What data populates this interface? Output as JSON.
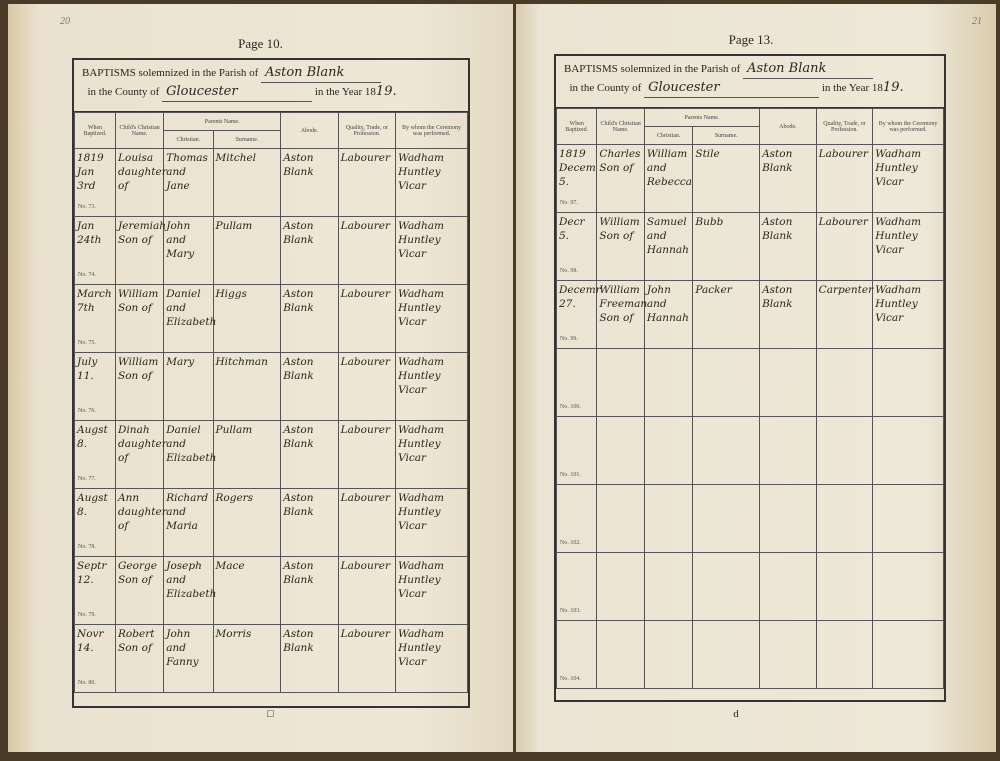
{
  "left": {
    "corner": "20",
    "page_label": "Page 10.",
    "heading": {
      "prefix": "BAPTISMS solemnized in the Parish of",
      "parish": "Aston Blank",
      "county_prefix": "in the County of",
      "county": "Gloucester",
      "year_prefix": "in the Year 18",
      "year": "19."
    },
    "columns": {
      "when": "When Baptized.",
      "child": "Child's Christian Name.",
      "parents": "Parents Name.",
      "christian": "Christian.",
      "surname": "Surname.",
      "abode": "Abode.",
      "quality": "Quality, Trade, or Profession.",
      "by": "By whom the Ceremony was performed."
    },
    "entries": [
      {
        "date": "1819 Jan 3rd",
        "child": "Louisa daughter of",
        "parents": "Thomas and Jane",
        "surname": "Mitchel",
        "abode": "Aston Blank",
        "quality": "Labourer",
        "by": "Wadham Huntley Vicar",
        "no": "No. 73."
      },
      {
        "date": "Jan 24th",
        "child": "Jeremiah Son of",
        "parents": "John and Mary",
        "surname": "Pullam",
        "abode": "Aston Blank",
        "quality": "Labourer",
        "by": "Wadham Huntley Vicar",
        "no": "No. 74."
      },
      {
        "date": "March 7th",
        "child": "William Son of",
        "parents": "Daniel and Elizabeth",
        "surname": "Higgs",
        "abode": "Aston Blank",
        "quality": "Labourer",
        "by": "Wadham Huntley Vicar",
        "no": "No. 75."
      },
      {
        "date": "July 11.",
        "child": "William Son of",
        "parents": "Mary",
        "surname": "Hitchman",
        "abode": "Aston Blank",
        "quality": "Labourer",
        "by": "Wadham Huntley Vicar",
        "no": "No. 76."
      },
      {
        "date": "Augst 8.",
        "child": "Dinah daughter of",
        "parents": "Daniel and Elizabeth",
        "surname": "Pullam",
        "abode": "Aston Blank",
        "quality": "Labourer",
        "by": "Wadham Huntley Vicar",
        "no": "No. 77."
      },
      {
        "date": "Augst 8.",
        "child": "Ann daughter of",
        "parents": "Richard and Maria",
        "surname": "Rogers",
        "abode": "Aston Blank",
        "quality": "Labourer",
        "by": "Wadham Huntley Vicar",
        "no": "No. 78."
      },
      {
        "date": "Septr 12.",
        "child": "George Son of",
        "parents": "Joseph and Elizabeth",
        "surname": "Mace",
        "abode": "Aston Blank",
        "quality": "Labourer",
        "by": "Wadham Huntley Vicar",
        "no": "No. 79."
      },
      {
        "date": "Novr 14.",
        "child": "Robert Son of",
        "parents": "John and Fanny",
        "surname": "Morris",
        "abode": "Aston Blank",
        "quality": "Labourer",
        "by": "Wadham Huntley Vicar",
        "no": "No. 80."
      }
    ],
    "foot": "□"
  },
  "right": {
    "corner": "21",
    "page_label": "Page 13.",
    "heading": {
      "prefix": "BAPTISMS solemnized in the Parish of",
      "parish": "Aston Blank",
      "county_prefix": "in the County of",
      "county": "Gloucester",
      "year_prefix": "in the Year 18",
      "year": "19."
    },
    "columns": {
      "when": "When Baptized.",
      "child": "Child's Christian Name.",
      "parents": "Parents Name.",
      "christian": "Christian.",
      "surname": "Surname.",
      "abode": "Abode.",
      "quality": "Quality, Trade, or Profession.",
      "by": "By whom the Ceremony was performed."
    },
    "entries": [
      {
        "date": "1819 Decem 5.",
        "child": "Charles Son of",
        "parents": "William and Rebecca",
        "surname": "Stile",
        "abode": "Aston Blank",
        "quality": "Labourer",
        "by": "Wadham Huntley Vicar",
        "no": "No. 97."
      },
      {
        "date": "Decr 5.",
        "child": "William Son of",
        "parents": "Samuel and Hannah",
        "surname": "Bubb",
        "abode": "Aston Blank",
        "quality": "Labourer",
        "by": "Wadham Huntley Vicar",
        "no": "No. 98."
      },
      {
        "date": "Decemr 27.",
        "child": "William Freeman Son of",
        "parents": "John and Hannah",
        "surname": "Packer",
        "abode": "Aston Blank",
        "quality": "Carpenter",
        "by": "Wadham Huntley Vicar",
        "no": "No. 99."
      },
      {
        "date": "",
        "child": "",
        "parents": "",
        "surname": "",
        "abode": "",
        "quality": "",
        "by": "",
        "no": "No. 100."
      },
      {
        "date": "",
        "child": "",
        "parents": "",
        "surname": "",
        "abode": "",
        "quality": "",
        "by": "",
        "no": "No. 101."
      },
      {
        "date": "",
        "child": "",
        "parents": "",
        "surname": "",
        "abode": "",
        "quality": "",
        "by": "",
        "no": "No. 102."
      },
      {
        "date": "",
        "child": "",
        "parents": "",
        "surname": "",
        "abode": "",
        "quality": "",
        "by": "",
        "no": "No. 103."
      },
      {
        "date": "",
        "child": "",
        "parents": "",
        "surname": "",
        "abode": "",
        "quality": "",
        "by": "",
        "no": "No. 104."
      }
    ],
    "foot": "d"
  }
}
